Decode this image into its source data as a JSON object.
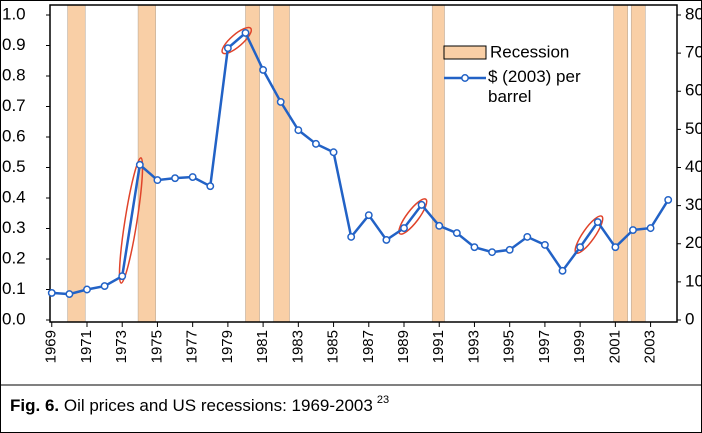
{
  "chart_data": {
    "type": "line",
    "x": [
      1969,
      1970,
      1971,
      1972,
      1973,
      1974,
      1975,
      1976,
      1977,
      1978,
      1979,
      1980,
      1981,
      1982,
      1983,
      1984,
      1985,
      1986,
      1987,
      1988,
      1989,
      1990,
      1991,
      1992,
      1993,
      1994,
      1995,
      1996,
      1997,
      1998,
      1999,
      2000,
      2001,
      2002,
      2003,
      2004
    ],
    "series": [
      {
        "name": "$ (2003) per barrel",
        "color": "#2262c6",
        "axis": "y2",
        "values": [
          7.1,
          6.8,
          8,
          8.9,
          11.5,
          40.7,
          36.7,
          37.2,
          37.5,
          35.1,
          71.3,
          75.3,
          65.6,
          57.2,
          49.8,
          46.2,
          44,
          21.8,
          27.5,
          21,
          24.1,
          30.2,
          24.7,
          22.8,
          19.1,
          17.8,
          18.4,
          21.8,
          19.7,
          12.9,
          19.1,
          25.7,
          19.1,
          23.6,
          24.1,
          31.5
        ]
      }
    ],
    "recessions": {
      "name": "Recession",
      "color": "#f9cfa6",
      "spans": [
        [
          1969.9,
          1970.9
        ],
        [
          1973.9,
          1974.9
        ],
        [
          1980.0,
          1980.8
        ],
        [
          1981.6,
          1982.5
        ],
        [
          1990.6,
          1991.3
        ],
        [
          2000.9,
          2001.7
        ],
        [
          2001.9,
          2002.7
        ]
      ]
    },
    "xlim": [
      1968.9,
      2004.5
    ],
    "xticks": [
      1969,
      1971,
      1973,
      1975,
      1977,
      1979,
      1981,
      1983,
      1985,
      1987,
      1989,
      1991,
      1993,
      1995,
      1997,
      1999,
      2001,
      2003
    ],
    "ylim": [
      0,
      1
    ],
    "yticks": [
      {
        "value": 0,
        "label": "0.0"
      },
      0.1,
      0.2,
      0.3,
      0.4,
      0.5,
      0.6,
      0.7,
      0.8,
      0.9,
      {
        "value": 1,
        "label": "1.0"
      }
    ],
    "y2lim": [
      0,
      80
    ],
    "y2ticks": [
      0,
      10,
      20,
      30,
      40,
      50,
      60,
      70,
      80
    ],
    "caption": {
      "label": "Fig. 6.",
      "text": " Oil prices and US recessions: 1969-2003",
      "ref": "23"
    }
  }
}
